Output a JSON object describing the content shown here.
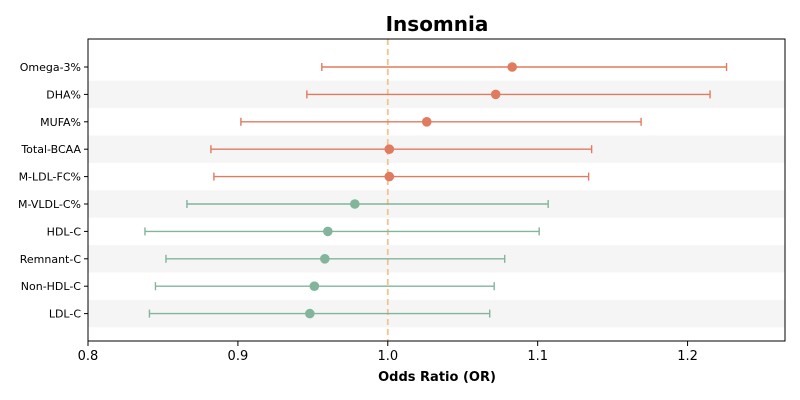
{
  "chart_data": {
    "type": "scatter",
    "title": "Insomnia",
    "xlabel": "Odds Ratio (OR)",
    "ylabel": "",
    "xlim": [
      0.8,
      1.265
    ],
    "xticks": [
      "0.8",
      "0.9",
      "1.0",
      "1.1",
      "1.2"
    ],
    "reference_line": 1.0,
    "grid": false,
    "colors": {
      "positive": "#e07b5f",
      "negative": "#82b59c",
      "reference": "#f0c48c",
      "band": "#f5f5f5"
    },
    "categories": [
      "Omega-3%",
      "DHA%",
      "MUFA%",
      "Total-BCAA",
      "M-LDL-FC%",
      "M-VLDL-C%",
      "HDL-C",
      "Remnant-C",
      "Non-HDL-C",
      "LDL-C"
    ],
    "series": [
      {
        "points": [
          {
            "label": "Omega-3%",
            "or": 1.083,
            "lower": 0.956,
            "upper": 1.226,
            "group": "positive"
          },
          {
            "label": "DHA%",
            "or": 1.072,
            "lower": 0.946,
            "upper": 1.215,
            "group": "positive"
          },
          {
            "label": "MUFA%",
            "or": 1.026,
            "lower": 0.902,
            "upper": 1.169,
            "group": "positive"
          },
          {
            "label": "Total-BCAA",
            "or": 1.001,
            "lower": 0.882,
            "upper": 1.136,
            "group": "positive"
          },
          {
            "label": "M-LDL-FC%",
            "or": 1.001,
            "lower": 0.884,
            "upper": 1.134,
            "group": "positive"
          },
          {
            "label": "M-VLDL-C%",
            "or": 0.978,
            "lower": 0.866,
            "upper": 1.107,
            "group": "negative"
          },
          {
            "label": "HDL-C",
            "or": 0.96,
            "lower": 0.838,
            "upper": 1.101,
            "group": "negative"
          },
          {
            "label": "Remnant-C",
            "or": 0.958,
            "lower": 0.852,
            "upper": 1.078,
            "group": "negative"
          },
          {
            "label": "Non-HDL-C",
            "or": 0.951,
            "lower": 0.845,
            "upper": 1.071,
            "group": "negative"
          },
          {
            "label": "LDL-C",
            "or": 0.948,
            "lower": 0.841,
            "upper": 1.068,
            "group": "negative"
          }
        ]
      }
    ]
  }
}
